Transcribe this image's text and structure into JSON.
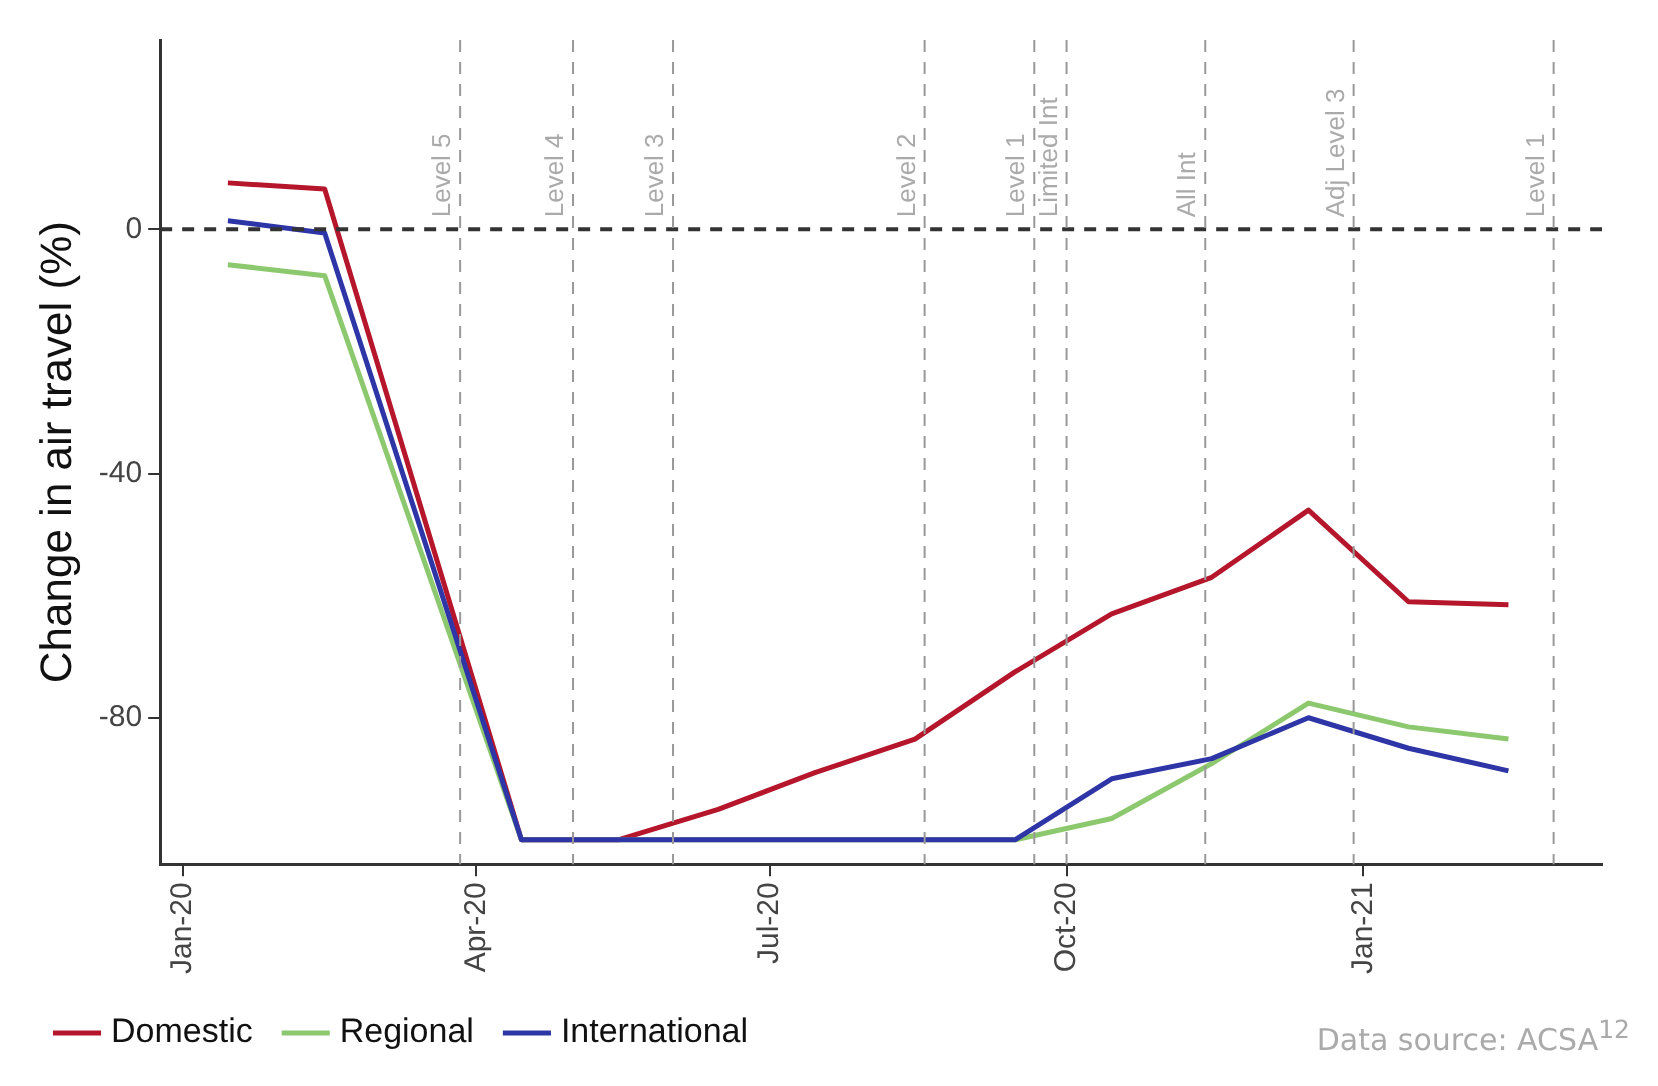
{
  "chart_data": {
    "type": "line",
    "ylabel": "Change in air travel (%)",
    "x": [
      "2020-01-15",
      "2020-02-14",
      "2020-04-15",
      "2020-05-15",
      "2020-06-15",
      "2020-07-15",
      "2020-08-15",
      "2020-09-15",
      "2020-10-15",
      "2020-11-15",
      "2020-12-15",
      "2021-01-15",
      "2021-02-15"
    ],
    "series": [
      {
        "name": "Domestic",
        "color": "#b5162b",
        "values": [
          7.6,
          6.6,
          -100,
          -100,
          -95,
          -89,
          -83.5,
          -72.5,
          -63,
          -57,
          -46,
          -61,
          -61.5
        ]
      },
      {
        "name": "Regional",
        "color": "#8cc86e",
        "values": [
          -5.8,
          -7.6,
          -100,
          -100,
          -100,
          -100,
          -100,
          -100,
          -96.5,
          -87.5,
          -77.6,
          -81.5,
          -83.5
        ]
      },
      {
        "name": "International",
        "color": "#2e35a6",
        "values": [
          1.4,
          -0.6,
          -100,
          -100,
          -100,
          -100,
          -100,
          -100,
          -90,
          -86.7,
          -80,
          -85,
          -88.7
        ]
      }
    ],
    "xlim": [
      "2019-12-25",
      "2021-03-16"
    ],
    "xticks": [
      {
        "value": "2020-01-01",
        "label": "Jan-20"
      },
      {
        "value": "2020-04-01",
        "label": "Apr-20"
      },
      {
        "value": "2020-07-01",
        "label": "Jul-20"
      },
      {
        "value": "2020-10-01",
        "label": "Oct-20"
      },
      {
        "value": "2021-01-01",
        "label": "Jan-21"
      }
    ],
    "ylim": [
      -104,
      31
    ],
    "yticks": [
      0,
      -40,
      -80
    ],
    "ref_lines": [
      {
        "axis": "y",
        "value": 0,
        "color": "#333333",
        "line_style": "dashed"
      },
      {
        "axis": "x",
        "value": "2020-03-27",
        "label": "Level 5",
        "color": "#999999",
        "line_style": "dashed"
      },
      {
        "axis": "x",
        "value": "2020-05-01",
        "label": "Level 4",
        "color": "#999999",
        "line_style": "dashed"
      },
      {
        "axis": "x",
        "value": "2020-06-01",
        "label": "Level 3",
        "color": "#999999",
        "line_style": "dashed"
      },
      {
        "axis": "x",
        "value": "2020-08-18",
        "label": "Level 2",
        "color": "#999999",
        "line_style": "dashed"
      },
      {
        "axis": "x",
        "value": "2020-09-21",
        "label": "Level 1",
        "color": "#999999",
        "line_style": "dashed"
      },
      {
        "axis": "x",
        "value": "2020-10-01",
        "label": "Limited Int",
        "color": "#999999",
        "line_style": "dashed"
      },
      {
        "axis": "x",
        "value": "2020-11-13",
        "label": "All Int",
        "color": "#999999",
        "line_style": "dashed"
      },
      {
        "axis": "x",
        "value": "2020-12-29",
        "label": "Adj Level 3",
        "color": "#999999",
        "line_style": "dashed"
      },
      {
        "axis": "x",
        "value": "2021-03-01",
        "label": "Level 1",
        "color": "#999999",
        "line_style": "dashed"
      }
    ],
    "annotations": [
      "Data source: ACSA$^{12}$"
    ],
    "grid": false,
    "legend": "bottom",
    "marker": "none",
    "line_style": "solid"
  }
}
